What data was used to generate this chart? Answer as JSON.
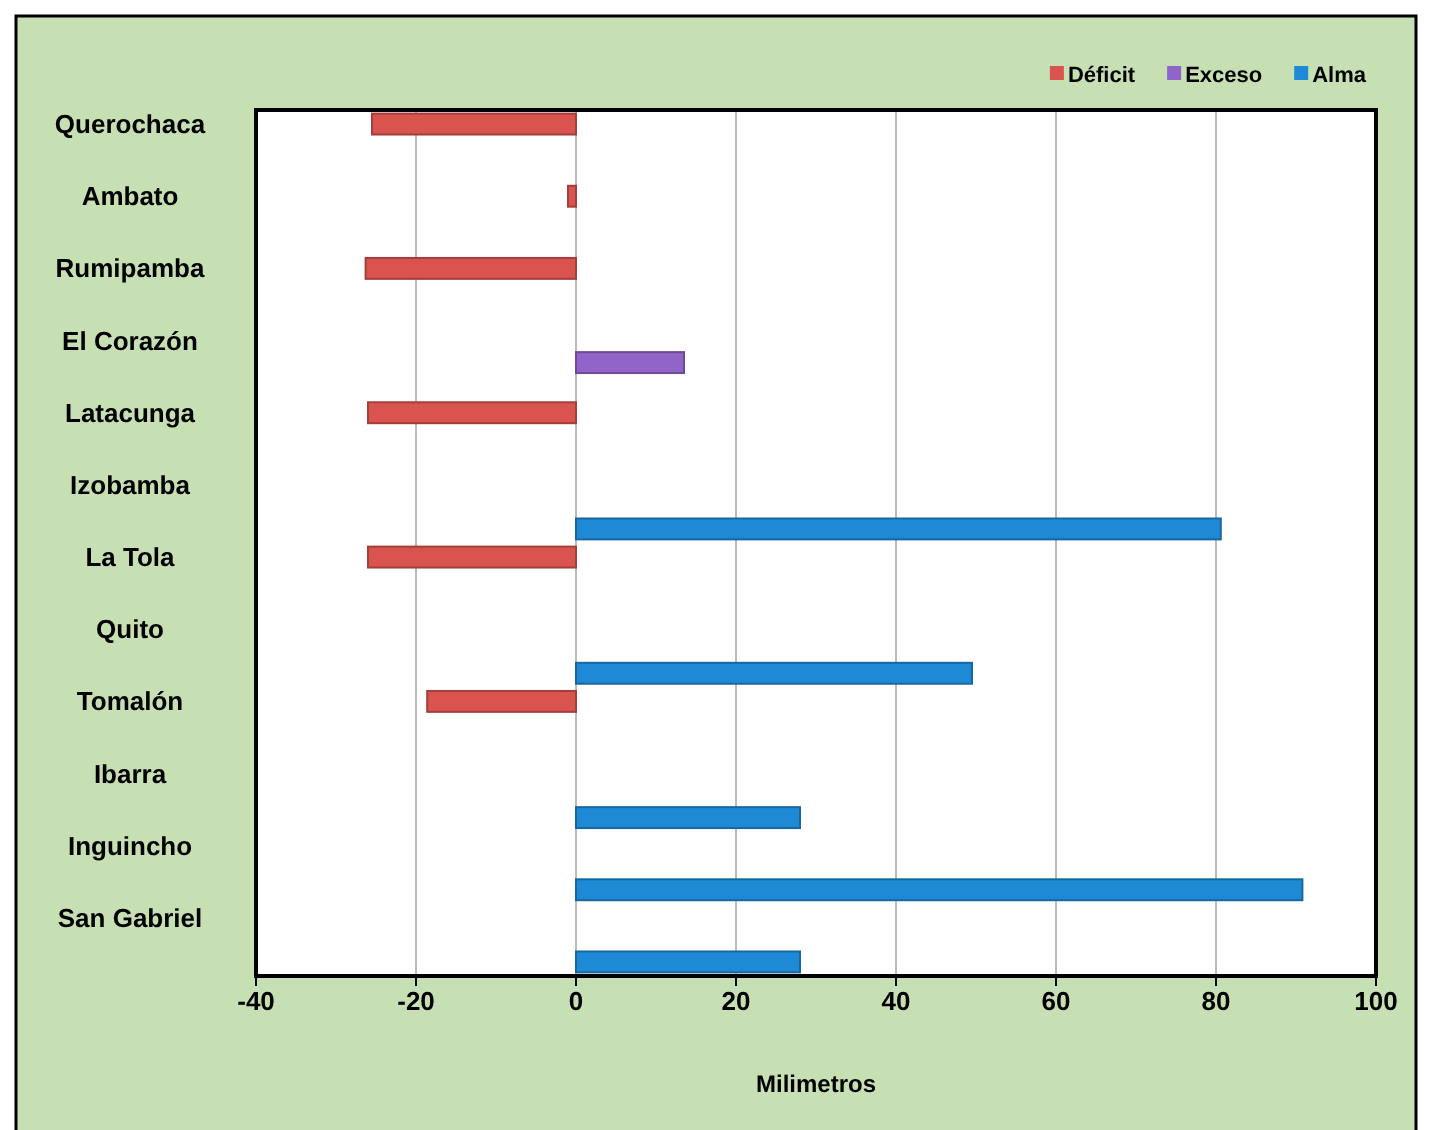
{
  "chart_data": {
    "type": "bar",
    "orientation": "horizontal",
    "xlabel": "Milimetros",
    "categories": [
      "Querochaca",
      "Ambato",
      "Rumipamba",
      "El Corazón ",
      "Latacunga",
      "Izobamba",
      "La Tola",
      "Quito ",
      "Tomalón",
      "Ibarra ",
      "Inguincho",
      "San Gabriel"
    ],
    "series": [
      {
        "name": "Déficit",
        "color": "#d9534f",
        "values": [
          -25.5,
          -1,
          -26.3,
          null,
          -26,
          null,
          -26,
          null,
          -18.6,
          null,
          null,
          null
        ]
      },
      {
        "name": "Exceso",
        "color": "#9064c8",
        "values": [
          null,
          null,
          null,
          13.5,
          null,
          null,
          null,
          null,
          null,
          null,
          null,
          null
        ]
      },
      {
        "name": "Alma",
        "color": "#1e8ad6",
        "values": [
          null,
          null,
          null,
          null,
          null,
          80.6,
          null,
          49.5,
          null,
          28,
          90.8,
          28
        ]
      }
    ],
    "xlim": [
      -40,
      100
    ],
    "xticks": [
      -40,
      -20,
      0,
      20,
      40,
      60,
      80,
      100
    ],
    "grid": "x",
    "legend": "top right"
  }
}
